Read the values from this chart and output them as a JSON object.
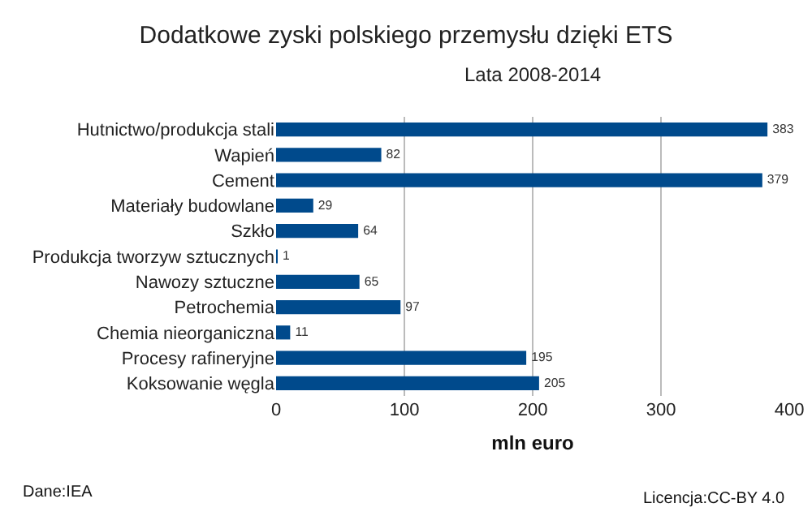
{
  "chart_data": {
    "type": "bar",
    "orientation": "horizontal",
    "title": "Dodatkowe zyski polskiego przemysłu dzięki ETS",
    "subtitle": "Lata 2008-2014",
    "xlabel": "mln euro",
    "categories": [
      "Hutnictwo/produkcja stali",
      "Wapień",
      "Cement",
      "Materiały budowlane",
      "Szkło",
      "Produkcja tworzyw sztucznych",
      "Nawozy sztuczne",
      "Petrochemia",
      "Chemia nieorganiczna",
      "Procesy rafineryjne",
      "Koksowanie węgla"
    ],
    "values": [
      383,
      82,
      379,
      29,
      64,
      1,
      65,
      97,
      11,
      195,
      205
    ],
    "color": "#004a8c",
    "xlim": [
      0,
      400
    ],
    "xticks": [
      0,
      100,
      200,
      300,
      400
    ],
    "grid": "x",
    "data_labels": true,
    "annotations": [
      "Dane:IEA",
      "Licencja:CC-BY 4.0"
    ]
  }
}
